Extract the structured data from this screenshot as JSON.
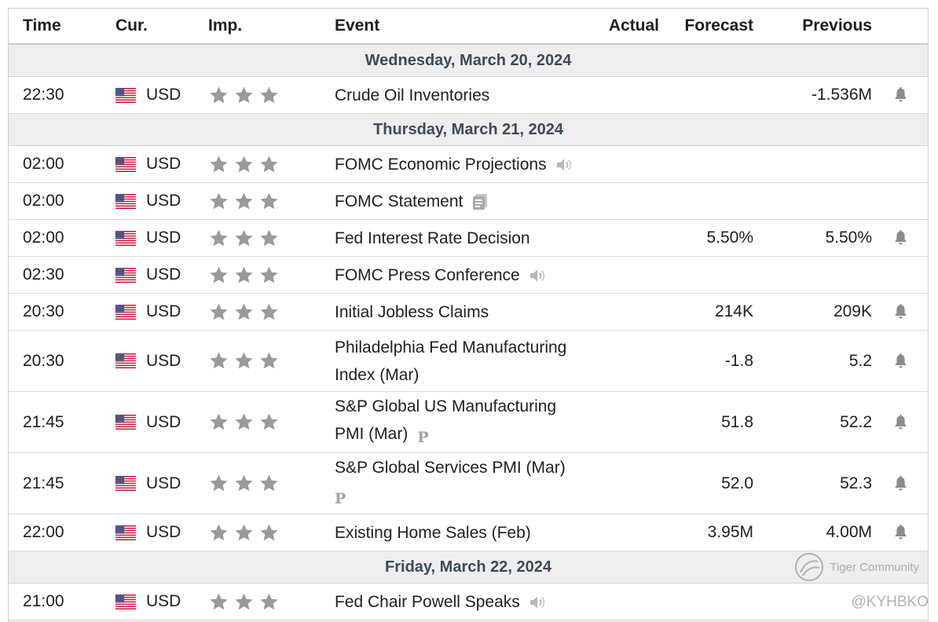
{
  "header": {
    "time": "Time",
    "currency": "Cur.",
    "importance": "Imp.",
    "event": "Event",
    "actual": "Actual",
    "forecast": "Forecast",
    "previous": "Previous"
  },
  "colors": {
    "star": "#9a9a9a",
    "bell": "#8c8c8c",
    "day_header_bg": "#eeeeee",
    "day_header_text": "#3d4a5a"
  },
  "days": [
    {
      "label": "Wednesday, March 20, 2024",
      "events": [
        {
          "time": "22:30",
          "currency": "USD",
          "stars": 3,
          "lines": [
            "Crude Oil Inventories"
          ],
          "icon": null,
          "actual": "",
          "forecast": "",
          "previous": "-1.536M",
          "alert": true
        }
      ]
    },
    {
      "label": "Thursday, March 21, 2024",
      "events": [
        {
          "time": "02:00",
          "currency": "USD",
          "stars": 3,
          "lines": [
            "FOMC Economic Projections"
          ],
          "icon": "speaker-icon",
          "actual": "",
          "forecast": "",
          "previous": "",
          "alert": false
        },
        {
          "time": "02:00",
          "currency": "USD",
          "stars": 3,
          "lines": [
            "FOMC Statement"
          ],
          "icon": "document-icon",
          "actual": "",
          "forecast": "",
          "previous": "",
          "alert": false
        },
        {
          "time": "02:00",
          "currency": "USD",
          "stars": 3,
          "lines": [
            "Fed Interest Rate Decision"
          ],
          "icon": null,
          "actual": "",
          "forecast": "5.50%",
          "previous": "5.50%",
          "alert": true
        },
        {
          "time": "02:30",
          "currency": "USD",
          "stars": 3,
          "lines": [
            "FOMC Press Conference"
          ],
          "icon": "speaker-icon",
          "actual": "",
          "forecast": "",
          "previous": "",
          "alert": false
        },
        {
          "time": "20:30",
          "currency": "USD",
          "stars": 3,
          "lines": [
            "Initial Jobless Claims"
          ],
          "icon": null,
          "actual": "",
          "forecast": "214K",
          "previous": "209K",
          "alert": true
        },
        {
          "time": "20:30",
          "currency": "USD",
          "stars": 3,
          "lines": [
            "Philadelphia Fed Manufacturing",
            "Index (Mar)"
          ],
          "icon": null,
          "actual": "",
          "forecast": "-1.8",
          "previous": "5.2",
          "alert": true
        },
        {
          "time": "21:45",
          "currency": "USD",
          "stars": 3,
          "lines": [
            "S&P Global US Manufacturing",
            "PMI (Mar)"
          ],
          "icon": "preliminary-icon",
          "icon_inline": true,
          "actual": "",
          "forecast": "51.8",
          "previous": "52.2",
          "alert": true
        },
        {
          "time": "21:45",
          "currency": "USD",
          "stars": 3,
          "lines": [
            "S&P Global Services PMI (Mar)"
          ],
          "icon": "preliminary-icon",
          "icon_inline": false,
          "actual": "",
          "forecast": "52.0",
          "previous": "52.3",
          "alert": true
        },
        {
          "time": "22:00",
          "currency": "USD",
          "stars": 3,
          "lines": [
            "Existing Home Sales (Feb)"
          ],
          "icon": null,
          "actual": "",
          "forecast": "3.95M",
          "previous": "4.00M",
          "alert": true
        }
      ]
    },
    {
      "label": "Friday, March 22, 2024",
      "events": [
        {
          "time": "21:00",
          "currency": "USD",
          "stars": 3,
          "lines": [
            "Fed Chair Powell Speaks"
          ],
          "icon": "speaker-icon",
          "actual": "",
          "forecast": "",
          "previous": "",
          "alert": false
        }
      ]
    }
  ],
  "preliminary_badge": "P",
  "watermark": {
    "brand": "Tiger Community",
    "handle": "@KYHBKO"
  }
}
